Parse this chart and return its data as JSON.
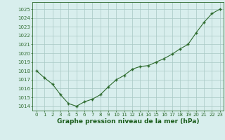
{
  "x": [
    0,
    1,
    2,
    3,
    4,
    5,
    6,
    7,
    8,
    9,
    10,
    11,
    12,
    13,
    14,
    15,
    16,
    17,
    18,
    19,
    20,
    21,
    22,
    23
  ],
  "y": [
    1018.0,
    1017.2,
    1016.5,
    1015.3,
    1014.3,
    1014.0,
    1014.5,
    1014.8,
    1015.3,
    1016.2,
    1017.0,
    1017.5,
    1018.2,
    1018.5,
    1018.6,
    1019.0,
    1019.4,
    1019.9,
    1020.5,
    1021.0,
    1022.3,
    1023.5,
    1024.5,
    1025.0
  ],
  "line_color": "#2d6a2d",
  "marker": "+",
  "bg_color": "#d8eeed",
  "grid_color": "#a8c8c4",
  "xlabel": "Graphe pression niveau de la mer (hPa)",
  "xlabel_color": "#1a5c1a",
  "tick_color": "#2d6a2d",
  "ylim": [
    1013.5,
    1025.8
  ],
  "yticks": [
    1014,
    1015,
    1016,
    1017,
    1018,
    1019,
    1020,
    1021,
    1022,
    1023,
    1024,
    1025
  ],
  "xticks": [
    0,
    1,
    2,
    3,
    4,
    5,
    6,
    7,
    8,
    9,
    10,
    11,
    12,
    13,
    14,
    15,
    16,
    17,
    18,
    19,
    20,
    21,
    22,
    23
  ],
  "spine_color": "#2d6a2d",
  "tick_fontsize": 5.0,
  "xlabel_fontsize": 6.5
}
